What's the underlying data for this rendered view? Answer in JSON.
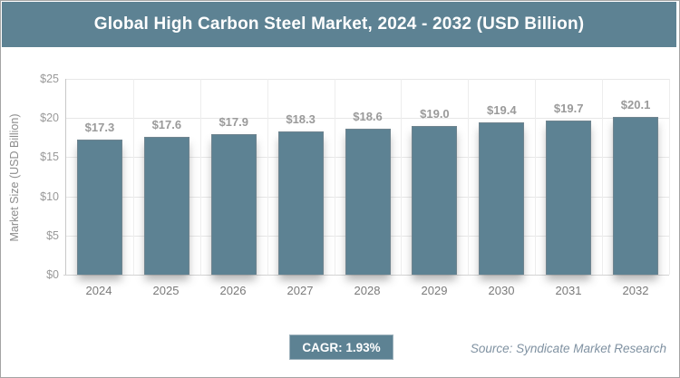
{
  "header": {
    "title": "Global High Carbon Steel Market, 2024 - 2032 (USD Billion)"
  },
  "chart_data": {
    "type": "bar",
    "title": "Global High Carbon Steel Market, 2024 - 2032 (USD Billion)",
    "categories": [
      "2024",
      "2025",
      "2026",
      "2027",
      "2028",
      "2029",
      "2030",
      "2031",
      "2032"
    ],
    "values": [
      17.3,
      17.6,
      17.9,
      18.3,
      18.6,
      19.0,
      19.4,
      19.7,
      20.1
    ],
    "bar_labels": [
      "$17.3",
      "$17.6",
      "$17.9",
      "$18.3",
      "$18.6",
      "$19.0",
      "$19.4",
      "$19.7",
      "$20.1"
    ],
    "xlabel": "",
    "ylabel": "Market Size (USD Billion)",
    "ylim": [
      0,
      25
    ],
    "yticks": [
      0,
      5,
      10,
      15,
      20,
      25
    ],
    "ytick_labels": [
      "$0",
      "$5",
      "$10",
      "$15",
      "$20",
      "$25"
    ],
    "grid": true,
    "legend": "none",
    "bar_color": "#5d8293"
  },
  "footer": {
    "cagr_label": "CAGR: 1.93%",
    "source": "Source: Syndicate Market Research"
  },
  "colors": {
    "accent_blue": "#5d8293",
    "grid_line": "#e7e7e7",
    "axis_line": "#c8c8c8",
    "tick_text": "#999999",
    "bar_label_text": "#9a9a9a",
    "x_label_text": "#7a7a7a",
    "source_text": "#7f91a1",
    "frame_border": "#a4a4a4",
    "title_text": "#ffffff"
  }
}
